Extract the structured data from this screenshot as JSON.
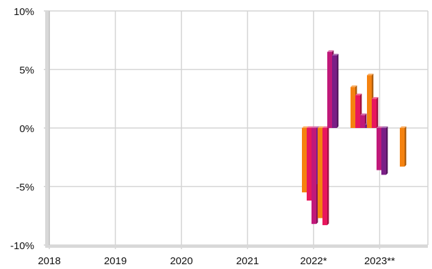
{
  "chart_data": {
    "type": "bar",
    "title": "",
    "xlabel": "",
    "ylabel": "",
    "ylim": [
      -10,
      10
    ],
    "y_ticks": [
      -10,
      -5,
      0,
      5,
      10
    ],
    "y_tick_labels": [
      "-10%",
      "-5%",
      "0%",
      "5%",
      "10%"
    ],
    "x_tick_labels": [
      "2018",
      "2019",
      "2020",
      "2021",
      "2022*",
      "2023**"
    ],
    "grid": true,
    "legend": "none",
    "style": "3d",
    "colors": [
      "#f5820f",
      "#e8175d",
      "#c0187a",
      "#7a1f86"
    ],
    "groups": [
      {
        "after_tick": 4,
        "values": [
          -5.5,
          -6.2,
          -8.2,
          -4.8
        ]
      },
      {
        "after_tick": 5,
        "values": [
          -7.7,
          -8.3,
          6.5,
          6.2
        ]
      },
      {
        "after_tick": 5,
        "values": [
          3.5,
          2.8,
          1.1,
          0.3
        ]
      },
      {
        "after_tick": 5,
        "values": [
          4.5,
          2.5,
          -3.6,
          -4.0
        ]
      },
      {
        "after_tick": 5,
        "values": [
          -3.3,
          0,
          0,
          0
        ]
      }
    ]
  }
}
